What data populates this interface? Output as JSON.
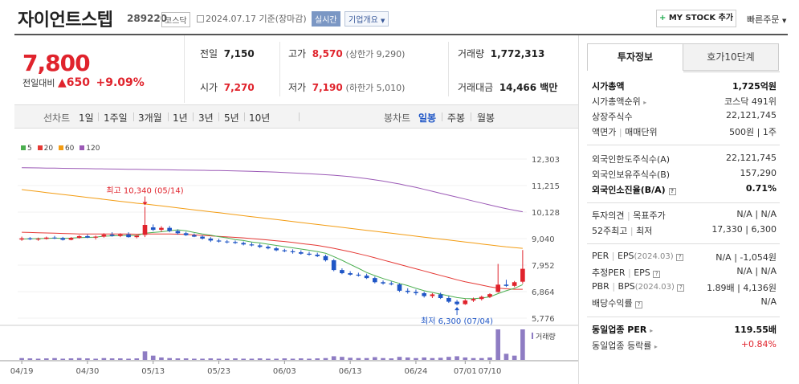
{
  "stock": {
    "name": "자이언트스텝",
    "code": "289220",
    "market": "코스닥",
    "date": "2024.07.17 기준(장마감)",
    "realtime_label": "실시간",
    "overview_label": "기업개요",
    "mystock_label": "MY STOCK 추가",
    "quick_order_label": "빠른주문"
  },
  "price": {
    "current": "7,800",
    "change_label": "전일대비",
    "change": "650",
    "change_pct": "+9.09%",
    "color_up": "#e0232c"
  },
  "stats": {
    "prev_label": "전일",
    "prev": "7,150",
    "open_label": "시가",
    "open": "7,270",
    "high_label": "고가",
    "high": "8,570",
    "upper_limit": "(상한가 9,290)",
    "low_label": "저가",
    "low": "7,190",
    "lower_limit": "(하한가 5,010)",
    "volume_label": "거래량",
    "volume": "1,772,313",
    "amount_label": "거래대금",
    "amount": "14,466 백만"
  },
  "chart_bar": {
    "line_chart_label": "선차트",
    "periods": [
      "1일",
      "1주일",
      "3개월",
      "1년",
      "3년",
      "5년",
      "10년"
    ],
    "candle_label": "봉차트",
    "candle_types": [
      "일봉",
      "주봉",
      "월봉"
    ],
    "active_candle": "일봉"
  },
  "chart_data": {
    "type": "candlestick",
    "legend": [
      {
        "name": "5",
        "color": "#4caf50"
      },
      {
        "name": "20",
        "color": "#e53935"
      },
      {
        "name": "60",
        "color": "#f39c12"
      },
      {
        "name": "120",
        "color": "#9b59b6"
      }
    ],
    "y_ticks": [
      "12,303",
      "11,215",
      "10,128",
      "9,040",
      "7,952",
      "6,864",
      "5,776"
    ],
    "ylim": [
      5776,
      12303
    ],
    "x_ticks": [
      "04/19",
      "04/30",
      "05/13",
      "05/23",
      "06/03",
      "06/13",
      "06/24",
      "07/01",
      "07/10"
    ],
    "annotations": [
      {
        "text": "최고 10,340 (05/14)",
        "value": 10340,
        "color": "#e0232c"
      },
      {
        "text": "최저 6,300 (07/04)",
        "value": 6300,
        "color": "#1f56c6"
      }
    ],
    "volume_label": "거래량",
    "candles": [
      [
        9000,
        9120,
        8950,
        9050
      ],
      [
        9050,
        9100,
        8980,
        9010
      ],
      [
        9010,
        9080,
        8950,
        9030
      ],
      [
        9030,
        9120,
        9000,
        9080
      ],
      [
        9080,
        9150,
        9020,
        9060
      ],
      [
        9060,
        9110,
        8960,
        8990
      ],
      [
        8990,
        9100,
        8970,
        9070
      ],
      [
        9070,
        9180,
        9040,
        9140
      ],
      [
        9140,
        9210,
        9060,
        9080
      ],
      [
        9080,
        9160,
        9000,
        9120
      ],
      [
        9120,
        9260,
        9080,
        9200
      ],
      [
        9200,
        9300,
        9120,
        9150
      ],
      [
        9150,
        9260,
        9100,
        9210
      ],
      [
        9210,
        9300,
        9080,
        9100
      ],
      [
        9100,
        9190,
        9050,
        9160
      ],
      [
        9190,
        10340,
        9100,
        9600
      ],
      [
        9500,
        9620,
        9350,
        9400
      ],
      [
        9400,
        9550,
        9320,
        9480
      ],
      [
        9480,
        9560,
        9300,
        9350
      ],
      [
        9350,
        9420,
        9200,
        9260
      ],
      [
        9260,
        9320,
        9150,
        9180
      ],
      [
        9180,
        9250,
        9100,
        9120
      ],
      [
        9120,
        9180,
        9000,
        9040
      ],
      [
        9040,
        9100,
        8900,
        8960
      ],
      [
        8960,
        9030,
        8880,
        8920
      ],
      [
        8920,
        8980,
        8840,
        8900
      ],
      [
        8900,
        8960,
        8820,
        8860
      ],
      [
        8860,
        8920,
        8760,
        8800
      ],
      [
        8800,
        8880,
        8720,
        8760
      ],
      [
        8760,
        8830,
        8650,
        8700
      ],
      [
        8700,
        8760,
        8600,
        8640
      ],
      [
        8640,
        8700,
        8520,
        8560
      ],
      [
        8560,
        8620,
        8480,
        8520
      ],
      [
        8520,
        8600,
        8420,
        8480
      ],
      [
        8480,
        8560,
        8380,
        8420
      ],
      [
        8420,
        8500,
        8340,
        8380
      ],
      [
        8380,
        8460,
        8280,
        8320
      ],
      [
        8320,
        8380,
        8100,
        8150
      ],
      [
        8150,
        8200,
        7700,
        7750
      ],
      [
        7750,
        7820,
        7580,
        7620
      ],
      [
        7620,
        7700,
        7520,
        7560
      ],
      [
        7560,
        7640,
        7480,
        7520
      ],
      [
        7520,
        7600,
        7380,
        7420
      ],
      [
        7420,
        7480,
        7200,
        7250
      ],
      [
        7250,
        7320,
        7150,
        7200
      ],
      [
        7200,
        7280,
        7120,
        7160
      ],
      [
        7160,
        7200,
        6850,
        6900
      ],
      [
        6900,
        7000,
        6780,
        6850
      ],
      [
        6850,
        6950,
        6720,
        6800
      ],
      [
        6800,
        6860,
        6620,
        6680
      ],
      [
        6680,
        6800,
        6600,
        6750
      ],
      [
        6750,
        6820,
        6560,
        6600
      ],
      [
        6600,
        6680,
        6400,
        6450
      ],
      [
        6450,
        6520,
        6300,
        6350
      ],
      [
        6350,
        6560,
        6320,
        6500
      ],
      [
        6500,
        6620,
        6440,
        6560
      ],
      [
        6560,
        6700,
        6500,
        6650
      ],
      [
        6650,
        6800,
        6600,
        6760
      ],
      [
        6850,
        8000,
        6820,
        7150
      ],
      [
        7150,
        7350,
        7050,
        7100
      ],
      [
        7100,
        7300,
        7050,
        7250
      ],
      [
        7270,
        8570,
        7190,
        7800
      ]
    ],
    "ma5": [
      9020,
      9030,
      9040,
      9050,
      9060,
      9050,
      9060,
      9080,
      9090,
      9100,
      9140,
      9150,
      9160,
      9170,
      9160,
      9260,
      9290,
      9320,
      9360,
      9400,
      9360,
      9290,
      9230,
      9180,
      9120,
      9070,
      9000,
      8960,
      8900,
      8860,
      8810,
      8760,
      8710,
      8660,
      8610,
      8560,
      8510,
      8440,
      8300,
      8150,
      7980,
      7820,
      7650,
      7520,
      7400,
      7300,
      7200,
      7110,
      7000,
      6900,
      6830,
      6760,
      6690,
      6620,
      6580,
      6570,
      6600,
      6650,
      6780,
      6900,
      7000,
      7150
    ],
    "ma20": [
      9300,
      9290,
      9280,
      9270,
      9260,
      9250,
      9240,
      9230,
      9230,
      9230,
      9230,
      9230,
      9230,
      9230,
      9220,
      9230,
      9230,
      9230,
      9230,
      9220,
      9210,
      9190,
      9170,
      9150,
      9130,
      9110,
      9090,
      9070,
      9040,
      9010,
      8980,
      8950,
      8920,
      8880,
      8840,
      8800,
      8760,
      8700,
      8640,
      8570,
      8500,
      8420,
      8340,
      8250,
      8160,
      8070,
      7980,
      7890,
      7800,
      7710,
      7620,
      7530,
      7440,
      7350,
      7270,
      7200,
      7130,
      7060,
      7010,
      6980,
      6960,
      6960
    ],
    "ma60": [
      11050,
      11010,
      10970,
      10930,
      10890,
      10850,
      10810,
      10770,
      10730,
      10690,
      10650,
      10610,
      10570,
      10530,
      10490,
      10460,
      10420,
      10380,
      10340,
      10300,
      10260,
      10220,
      10180,
      10140,
      10100,
      10060,
      10020,
      9980,
      9940,
      9900,
      9860,
      9820,
      9780,
      9740,
      9700,
      9660,
      9620,
      9580,
      9540,
      9500,
      9460,
      9420,
      9380,
      9340,
      9300,
      9260,
      9220,
      9180,
      9140,
      9100,
      9060,
      9020,
      8980,
      8940,
      8900,
      8860,
      8820,
      8780,
      8740,
      8700,
      8670,
      8640
    ],
    "ma120": [
      11950,
      11945,
      11940,
      11935,
      11930,
      11925,
      11920,
      11915,
      11910,
      11905,
      11900,
      11895,
      11890,
      11885,
      11880,
      11875,
      11870,
      11865,
      11860,
      11855,
      11850,
      11845,
      11840,
      11835,
      11830,
      11825,
      11820,
      11810,
      11800,
      11790,
      11780,
      11765,
      11750,
      11735,
      11720,
      11700,
      11680,
      11660,
      11640,
      11610,
      11580,
      11540,
      11500,
      11450,
      11400,
      11340,
      11280,
      11210,
      11140,
      11060,
      10980,
      10900,
      10820,
      10740,
      10660,
      10580,
      10500,
      10420,
      10340,
      10270,
      10200,
      10140
    ],
    "volumes": [
      6,
      5,
      4,
      5,
      6,
      4,
      5,
      6,
      5,
      4,
      6,
      5,
      5,
      4,
      5,
      28,
      14,
      8,
      6,
      5,
      5,
      4,
      4,
      5,
      4,
      4,
      5,
      4,
      4,
      5,
      4,
      4,
      5,
      4,
      5,
      4,
      5,
      6,
      12,
      10,
      7,
      6,
      6,
      9,
      6,
      5,
      10,
      8,
      6,
      8,
      6,
      7,
      10,
      12,
      8,
      6,
      6,
      8,
      100,
      20,
      14,
      100
    ]
  },
  "panel": {
    "tab_info": "투자정보",
    "tab_orderbook": "호가10단계",
    "market_cap_label": "시가총액",
    "market_cap": "1,725억원",
    "rank_label": "시가총액순위",
    "rank": "코스닥 491위",
    "shares_label": "상장주식수",
    "shares": "22,121,745",
    "par_label": "액면가",
    "unit_label": "매매단위",
    "par_unit": "500원 | 1주",
    "foreign_limit_label": "외국인한도주식수(A)",
    "foreign_limit": "22,121,745",
    "foreign_hold_label": "외국인보유주식수(B)",
    "foreign_hold": "157,290",
    "foreign_ratio_label": "외국인소진율(B/A)",
    "foreign_ratio": "0.71%",
    "opinion_label": "투자의견",
    "target_label": "목표주가",
    "opinion_target": "N/A | N/A",
    "w52_label": "52주최고",
    "w52_low_label": "최저",
    "w52": "17,330 | 6,300",
    "per_label": "PER",
    "eps_label": "EPS",
    "per_eps_date": "(2024.03)",
    "per_eps": "N/A | -1,054원",
    "est_per_label": "추정PER",
    "est_eps_label": "EPS",
    "est_per_eps": "N/A | N/A",
    "pbr_label": "PBR",
    "bps_label": "BPS",
    "pbr_bps_date": "(2024.03)",
    "pbr_bps": "1.89배 | 4,136원",
    "div_label": "배당수익률",
    "div": "N/A",
    "industry_per_label": "동일업종 PER",
    "industry_per": "119.55배",
    "industry_rate_label": "동일업종 등락률",
    "industry_rate": "+0.84%"
  }
}
